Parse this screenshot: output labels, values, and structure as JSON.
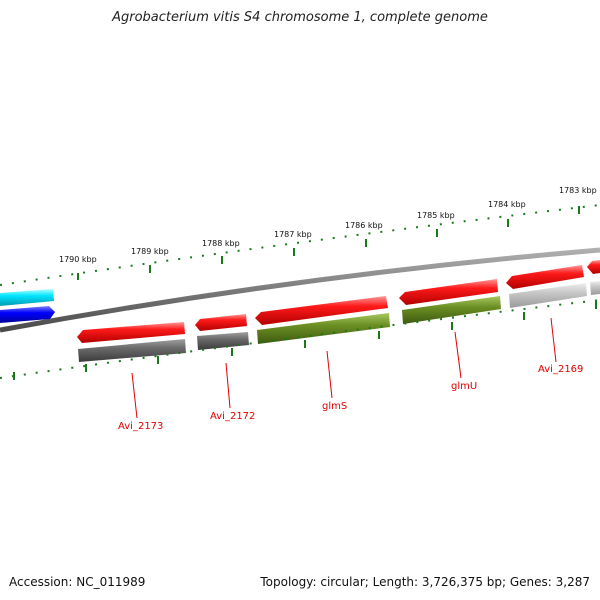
{
  "title": "Agrobacterium vitis S4 chromosome 1, complete genome",
  "footer": {
    "accession": "Accession: NC_011989",
    "summary": "Topology: circular; Length: 3,726,375 bp; Genes: 3,287"
  },
  "kbp_labels": [
    "1790 kbp",
    "1789 kbp",
    "1788 kbp",
    "1787 kbp",
    "1786 kbp",
    "1785 kbp",
    "1784 kbp",
    "1783 kbp"
  ],
  "gene_labels": [
    "Avi_2173",
    "Avi_2172",
    "glmS",
    "glmU",
    "Avi_2169"
  ],
  "colors": {
    "forward_cds": "#ee0000",
    "reverse_cds_gray": "#666666",
    "reverse_cds_olive": "#6b8e23",
    "light_gray": "#c8c8c8",
    "cyan": "#00e5ff",
    "blue": "#0000ff",
    "backbone": "#808080",
    "tick": "#1a7a1a",
    "label": "#e00000"
  }
}
